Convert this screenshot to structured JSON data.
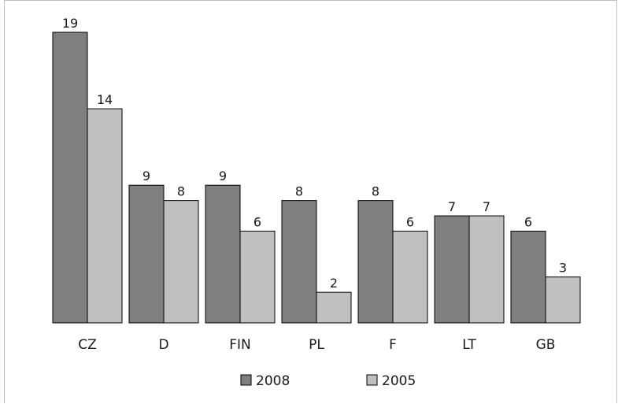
{
  "chart_data": {
    "type": "bar",
    "categories": [
      "CZ",
      "D",
      "FIN",
      "PL",
      "F",
      "LT",
      "GB"
    ],
    "series": [
      {
        "name": "2008",
        "values": [
          19,
          9,
          9,
          8,
          8,
          7,
          6
        ],
        "color": "#7f7f7f"
      },
      {
        "name": "2005",
        "values": [
          14,
          8,
          6,
          2,
          6,
          7,
          3
        ],
        "color": "#c0c0c0"
      }
    ],
    "ylim": [
      0,
      19
    ],
    "grid": false,
    "legend": "bottom",
    "title": "",
    "xlabel": "",
    "ylabel": ""
  }
}
